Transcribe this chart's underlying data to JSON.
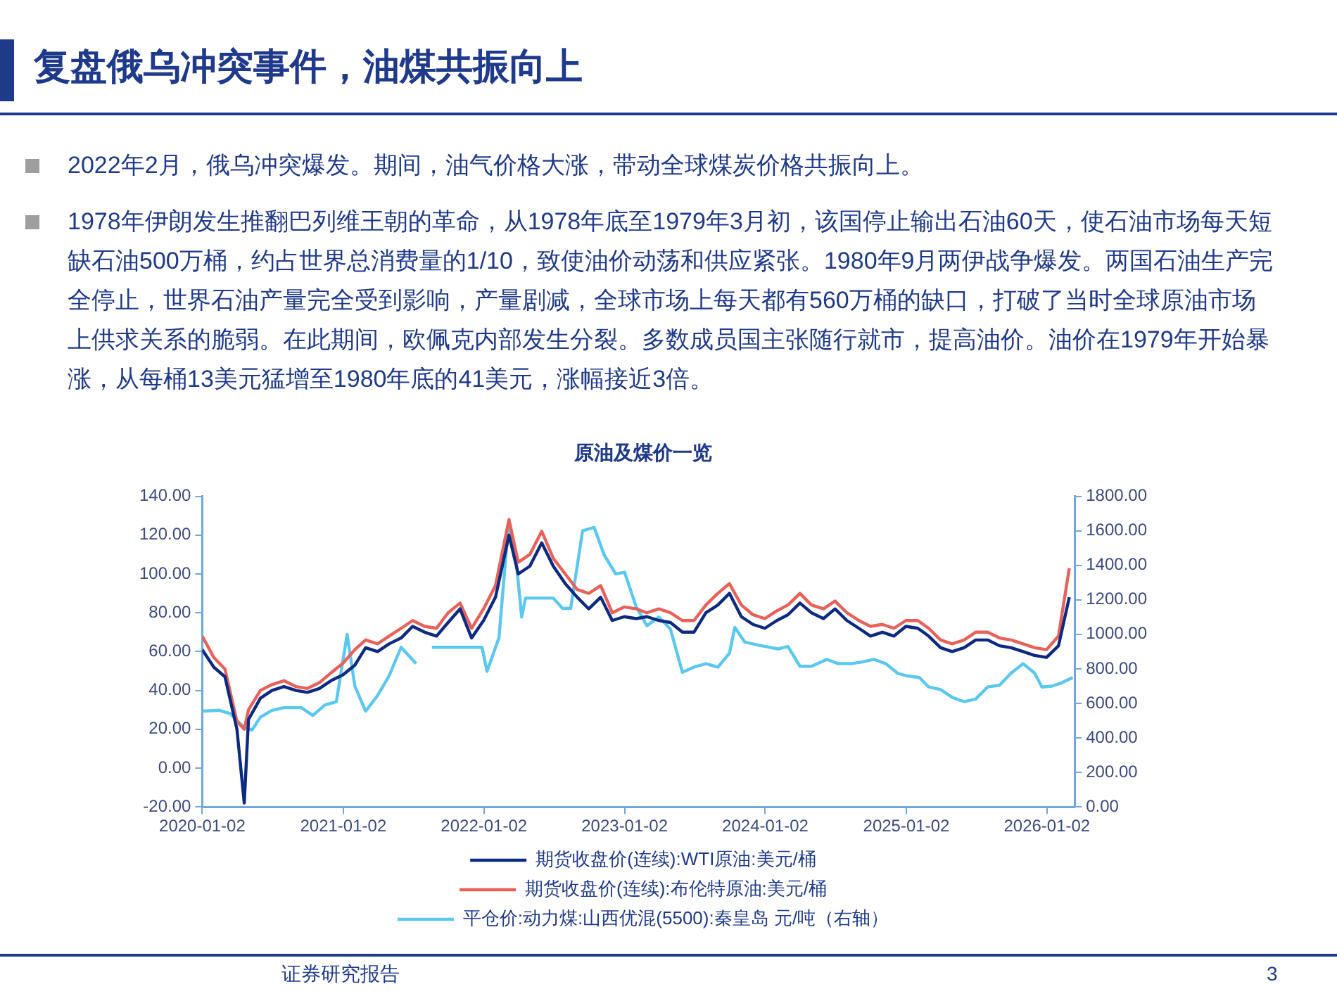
{
  "chart_data": {
    "type": "line",
    "title": "复盘俄乌冲突事件，油煤共振向上",
    "subtitle": "原油及煤价一览",
    "annotations": [
      "2022年2月，俄乌冲突爆发。期间，油气价格大涨，带动全球煤炭价格共振向上。",
      "1978年伊朗发生推翻巴列维王朝的革命，从1978年底至1979年3月初，该国停止输出石油60天，使石油市场每天短缺石油500万桶，约占世界总消费量的1/10，致使油价动荡和供应紧张。1980年9月两伊战争爆发。两国石油生产完全停止，世界石油产量完全受到影响，产量剧减，全球市场上每天都有560万桶的缺口，打破了当时全球原油市场上供求关系的脆弱。在此期间，欧佩克内部发生分裂。多数成员国主张随行就市，提高油价。油价在1979年开始暴涨，从每桶13美元猛增至1980年底的41美元，涨幅接近3倍。",
      "证券研究报告",
      "3"
    ],
    "x": [
      "2020-01-02",
      "2020-02",
      "2020-03",
      "2020-04",
      "2020-04-20",
      "2020-05",
      "2020-06",
      "2020-07",
      "2020-08",
      "2020-09",
      "2020-10",
      "2020-11",
      "2020-12",
      "2021-01",
      "2021-02",
      "2021-03",
      "2021-04",
      "2021-05",
      "2021-06",
      "2021-07",
      "2021-08",
      "2021-09",
      "2021-10",
      "2021-11",
      "2021-12",
      "2022-01",
      "2022-02",
      "2022-03-08",
      "2022-04",
      "2022-05",
      "2022-06",
      "2022-07",
      "2022-08",
      "2022-09",
      "2022-10",
      "2022-11",
      "2022-12",
      "2023-01",
      "2023-02",
      "2023-03",
      "2023-04",
      "2023-05",
      "2023-06",
      "2023-07",
      "2023-08",
      "2023-09",
      "2023-10",
      "2023-11",
      "2023-12",
      "2024-01",
      "2024-02",
      "2024-03",
      "2024-04",
      "2024-05",
      "2024-06",
      "2024-07",
      "2024-08",
      "2024-09",
      "2024-10",
      "2024-11",
      "2024-12",
      "2025-01",
      "2025-02",
      "2025-03",
      "2025-04",
      "2025-05",
      "2025-06",
      "2025-07",
      "2025-08",
      "2025-09",
      "2025-10",
      "2025-11",
      "2025-12",
      "2026-01",
      "2026-02",
      "2026-03"
    ],
    "series": [
      {
        "name": "期货收盘价(连续):WTI原油:美元/桶",
        "color": "#0d2a82",
        "values": [
          61,
          52,
          47,
          20,
          -18,
          25,
          36,
          40,
          42,
          40,
          39,
          41,
          45,
          48,
          53,
          62,
          60,
          64,
          67,
          73,
          70,
          68,
          75,
          82,
          67,
          76,
          88,
          120,
          100,
          104,
          116,
          104,
          95,
          88,
          82,
          88,
          76,
          78,
          77,
          78,
          76,
          75,
          70,
          70,
          80,
          84,
          90,
          78,
          74,
          72,
          76,
          79,
          85,
          80,
          77,
          82,
          76,
          72,
          68,
          70,
          68,
          73,
          72,
          68,
          62,
          60,
          62,
          66,
          66,
          63,
          62,
          60,
          58,
          57,
          63,
          88
        ]
      },
      {
        "name": "期货收盘价(连续):布伦特原油:美元/桶",
        "color": "#e8625a",
        "values": [
          68,
          57,
          51,
          24,
          20,
          30,
          40,
          43,
          45,
          42,
          41,
          44,
          49,
          54,
          61,
          66,
          64,
          68,
          72,
          76,
          73,
          72,
          80,
          85,
          72,
          82,
          94,
          128,
          106,
          110,
          122,
          108,
          100,
          92,
          90,
          94,
          80,
          83,
          82,
          80,
          82,
          80,
          76,
          76,
          84,
          90,
          95,
          84,
          79,
          77,
          81,
          84,
          90,
          84,
          82,
          86,
          80,
          76,
          73,
          74,
          72,
          76,
          76,
          72,
          66,
          64,
          66,
          70,
          70,
          67,
          66,
          64,
          62,
          61,
          68,
          103
        ]
      },
      {
        "name": "平仓价:动力煤:山西优混(5500):秦皇岛 元/吨（右轴）",
        "color": "#5bc8f0",
        "axis": "y2",
        "x": [
          "2020-01-02",
          "2020-02-15",
          "2020-03-15",
          "2020-04-15",
          "2020-05-10",
          "2020-06-01",
          "2020-07-01",
          "2020-08-01",
          "2020-09-15",
          "2020-10-15",
          "2020-11-15",
          "2020-12-15",
          "2021-01-12",
          "2021-02-01",
          "2021-03-01",
          "2021-04-01",
          "2021-05-01",
          "2021-06-01",
          "2021-07-10",
          "2021-08-01",
          "2021-08-20",
          "2021-12-28",
          "2022-01-10",
          "2022-02-10",
          "2022-03-07",
          "2022-03-25",
          "2022-04-10",
          "2022-04-20",
          "2022-07-01",
          "2022-07-25",
          "2022-08-15",
          "2022-09-15",
          "2022-10-15",
          "2022-11-10",
          "2022-12-10",
          "2023-01-02",
          "2023-02-01",
          "2023-03-01",
          "2023-04-01",
          "2023-05-01",
          "2023-06-01",
          "2023-07-01",
          "2023-08-01",
          "2023-09-01",
          "2023-10-01",
          "2023-10-15",
          "2023-11-10",
          "2023-12-10",
          "2024-01-02",
          "2024-02-05",
          "2024-03-01",
          "2024-04-01",
          "2024-05-01",
          "2024-06-10",
          "2024-07-10",
          "2024-08-10",
          "2024-09-10",
          "2024-10-10",
          "2024-11-10",
          "2024-12-10",
          "2025-01-02",
          "2025-02-05",
          "2025-03-01",
          "2025-04-01",
          "2025-05-01",
          "2025-06-01",
          "2025-07-01",
          "2025-08-01",
          "2025-09-01",
          "2025-10-01",
          "2025-11-01",
          "2025-12-01",
          "2025-12-20",
          "2026-01-15",
          "2026-02-10",
          "2026-03-10"
        ],
        "values": [
          555,
          560,
          540,
          470,
          445,
          520,
          560,
          575,
          575,
          530,
          590,
          610,
          1000,
          700,
          555,
          645,
          760,
          925,
          830,
          null,
          925,
          925,
          785,
          980,
          1640,
          1460,
          1100,
          1210,
          1210,
          1150,
          1150,
          1600,
          1620,
          1460,
          1350,
          1360,
          1160,
          1050,
          1100,
          1030,
          780,
          810,
          830,
          810,
          890,
          1040,
          955,
          940,
          930,
          915,
          930,
          815,
          815,
          855,
          830,
          830,
          840,
          855,
          830,
          775,
          760,
          750,
          695,
          680,
          635,
          610,
          625,
          695,
          705,
          775,
          830,
          775,
          695,
          700,
          720,
          750
        ]
      }
    ],
    "xlim": [
      "2020-01-02",
      "2026-03-15"
    ],
    "xticks": [
      "2020-01-02",
      "2021-01-02",
      "2022-01-02",
      "2023-01-02",
      "2024-01-02",
      "2025-01-02",
      "2026-01-02"
    ],
    "ylim": [
      -20,
      140
    ],
    "yticks": [
      {
        "value": -20,
        "label": "-20.00"
      },
      {
        "value": 0,
        "label": "0.00"
      },
      {
        "value": 20,
        "label": "20.00"
      },
      {
        "value": 40,
        "label": "40.00"
      },
      {
        "value": 60,
        "label": "60.00"
      },
      {
        "value": 80,
        "label": "80.00"
      },
      {
        "value": 100,
        "label": "100.00"
      },
      {
        "value": 120,
        "label": "120.00"
      },
      {
        "value": 140,
        "label": "140.00"
      }
    ],
    "y2lim": [
      0,
      1800
    ],
    "y2ticks": [
      {
        "value": 0,
        "label": "0.00"
      },
      {
        "value": 200,
        "label": "200.00"
      },
      {
        "value": 400,
        "label": "400.00"
      },
      {
        "value": 600,
        "label": "600.00"
      },
      {
        "value": 800,
        "label": "800.00"
      },
      {
        "value": 1000,
        "label": "1000.00"
      },
      {
        "value": 1200,
        "label": "1200.00"
      },
      {
        "value": 1400,
        "label": "1400.00"
      },
      {
        "value": 1600,
        "label": "1600.00"
      },
      {
        "value": 1800,
        "label": "1800.00"
      }
    ],
    "grid": false,
    "legend": "bottom",
    "line_style": "solid"
  }
}
